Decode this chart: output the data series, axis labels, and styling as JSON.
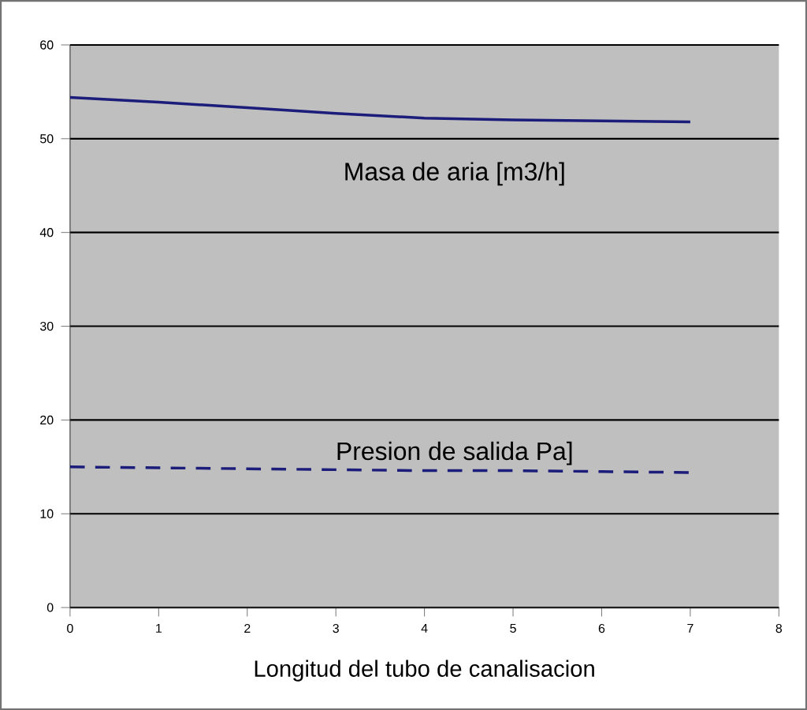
{
  "chart_data": {
    "type": "line",
    "xlabel": "Longitud del tubo de canalisacion",
    "categories": [
      "0",
      "1",
      "2",
      "3",
      "4",
      "5",
      "6",
      "7",
      "8"
    ],
    "series": [
      {
        "name": "Masa de aria [m3/h]",
        "color": "#1c1c7a",
        "line_style": "solid",
        "values": [
          54.4,
          53.9,
          53.3,
          52.7,
          52.2,
          52.0,
          51.9,
          51.8,
          null
        ]
      },
      {
        "name": "Presion de salida Pa]",
        "color": "#1c1c7a",
        "line_style": "dashed",
        "values": [
          15.0,
          14.9,
          14.8,
          14.7,
          14.6,
          14.6,
          14.5,
          14.4,
          null
        ]
      }
    ],
    "ylim": [
      0,
      60
    ],
    "yticks": [
      0,
      10,
      20,
      30,
      40,
      50,
      60
    ],
    "grid": "y",
    "legend": false,
    "marker": "none"
  }
}
